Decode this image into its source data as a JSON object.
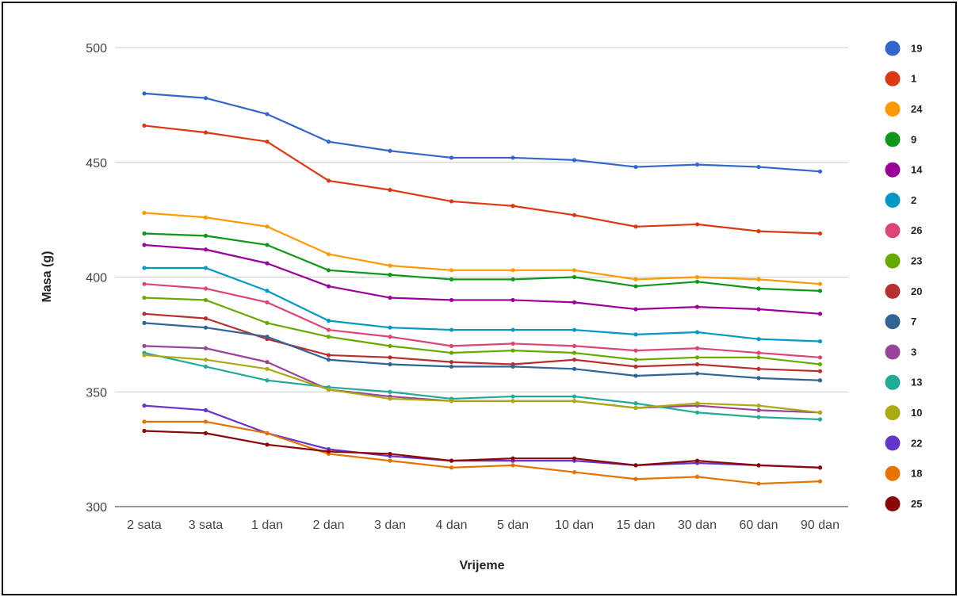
{
  "chart_data": {
    "type": "line",
    "xlabel": "Vrijeme",
    "ylabel": "Masa (g)",
    "ylim": [
      300,
      500
    ],
    "yticks": [
      300,
      350,
      400,
      450,
      500
    ],
    "grid": true,
    "legend_position": "right",
    "categories": [
      "2 sata",
      "3 sata",
      "1 dan",
      "2 dan",
      "3 dan",
      "4 dan",
      "5 dan",
      "10 dan",
      "15 dan",
      "30 dan",
      "60 dan",
      "90 dan"
    ],
    "series": [
      {
        "name": "19",
        "color": "#3366cc",
        "values": [
          480,
          478,
          471,
          459,
          455,
          452,
          452,
          451,
          448,
          449,
          448,
          446
        ]
      },
      {
        "name": "1",
        "color": "#dc3912",
        "values": [
          466,
          463,
          459,
          442,
          438,
          433,
          431,
          427,
          422,
          423,
          420,
          419
        ]
      },
      {
        "name": "24",
        "color": "#ff9900",
        "values": [
          428,
          426,
          422,
          410,
          405,
          403,
          403,
          403,
          399,
          400,
          399,
          397
        ]
      },
      {
        "name": "9",
        "color": "#109618",
        "values": [
          419,
          418,
          414,
          403,
          401,
          399,
          399,
          400,
          396,
          398,
          395,
          394
        ]
      },
      {
        "name": "14",
        "color": "#990099",
        "values": [
          414,
          412,
          406,
          396,
          391,
          390,
          390,
          389,
          386,
          387,
          386,
          384
        ]
      },
      {
        "name": "2",
        "color": "#0099c6",
        "values": [
          404,
          404,
          394,
          381,
          378,
          377,
          377,
          377,
          375,
          376,
          373,
          372
        ]
      },
      {
        "name": "26",
        "color": "#dd4477",
        "values": [
          397,
          395,
          389,
          377,
          374,
          370,
          371,
          370,
          368,
          369,
          367,
          365
        ]
      },
      {
        "name": "23",
        "color": "#66aa00",
        "values": [
          391,
          390,
          380,
          374,
          370,
          367,
          368,
          367,
          364,
          365,
          365,
          362
        ]
      },
      {
        "name": "20",
        "color": "#b82e2e",
        "values": [
          384,
          382,
          373,
          366,
          365,
          363,
          362,
          364,
          361,
          362,
          360,
          359
        ]
      },
      {
        "name": "7",
        "color": "#316395",
        "values": [
          380,
          378,
          374,
          364,
          362,
          361,
          361,
          360,
          357,
          358,
          356,
          355
        ]
      },
      {
        "name": "3",
        "color": "#994499",
        "values": [
          370,
          369,
          363,
          351,
          348,
          346,
          346,
          346,
          343,
          344,
          342,
          341
        ]
      },
      {
        "name": "13",
        "color": "#22aa99",
        "values": [
          367,
          361,
          355,
          352,
          350,
          347,
          348,
          348,
          345,
          341,
          339,
          338
        ]
      },
      {
        "name": "10",
        "color": "#aaaa11",
        "values": [
          366,
          364,
          360,
          351,
          347,
          346,
          346,
          346,
          343,
          345,
          344,
          341
        ]
      },
      {
        "name": "22",
        "color": "#6633cc",
        "values": [
          344,
          342,
          332,
          325,
          322,
          320,
          320,
          320,
          318,
          319,
          318,
          317
        ]
      },
      {
        "name": "18",
        "color": "#e67300",
        "values": [
          337,
          337,
          332,
          323,
          320,
          317,
          318,
          315,
          312,
          313,
          310,
          311
        ]
      },
      {
        "name": "25",
        "color": "#8b0707",
        "values": [
          333,
          332,
          327,
          324,
          323,
          320,
          321,
          321,
          318,
          320,
          318,
          317
        ]
      }
    ]
  }
}
